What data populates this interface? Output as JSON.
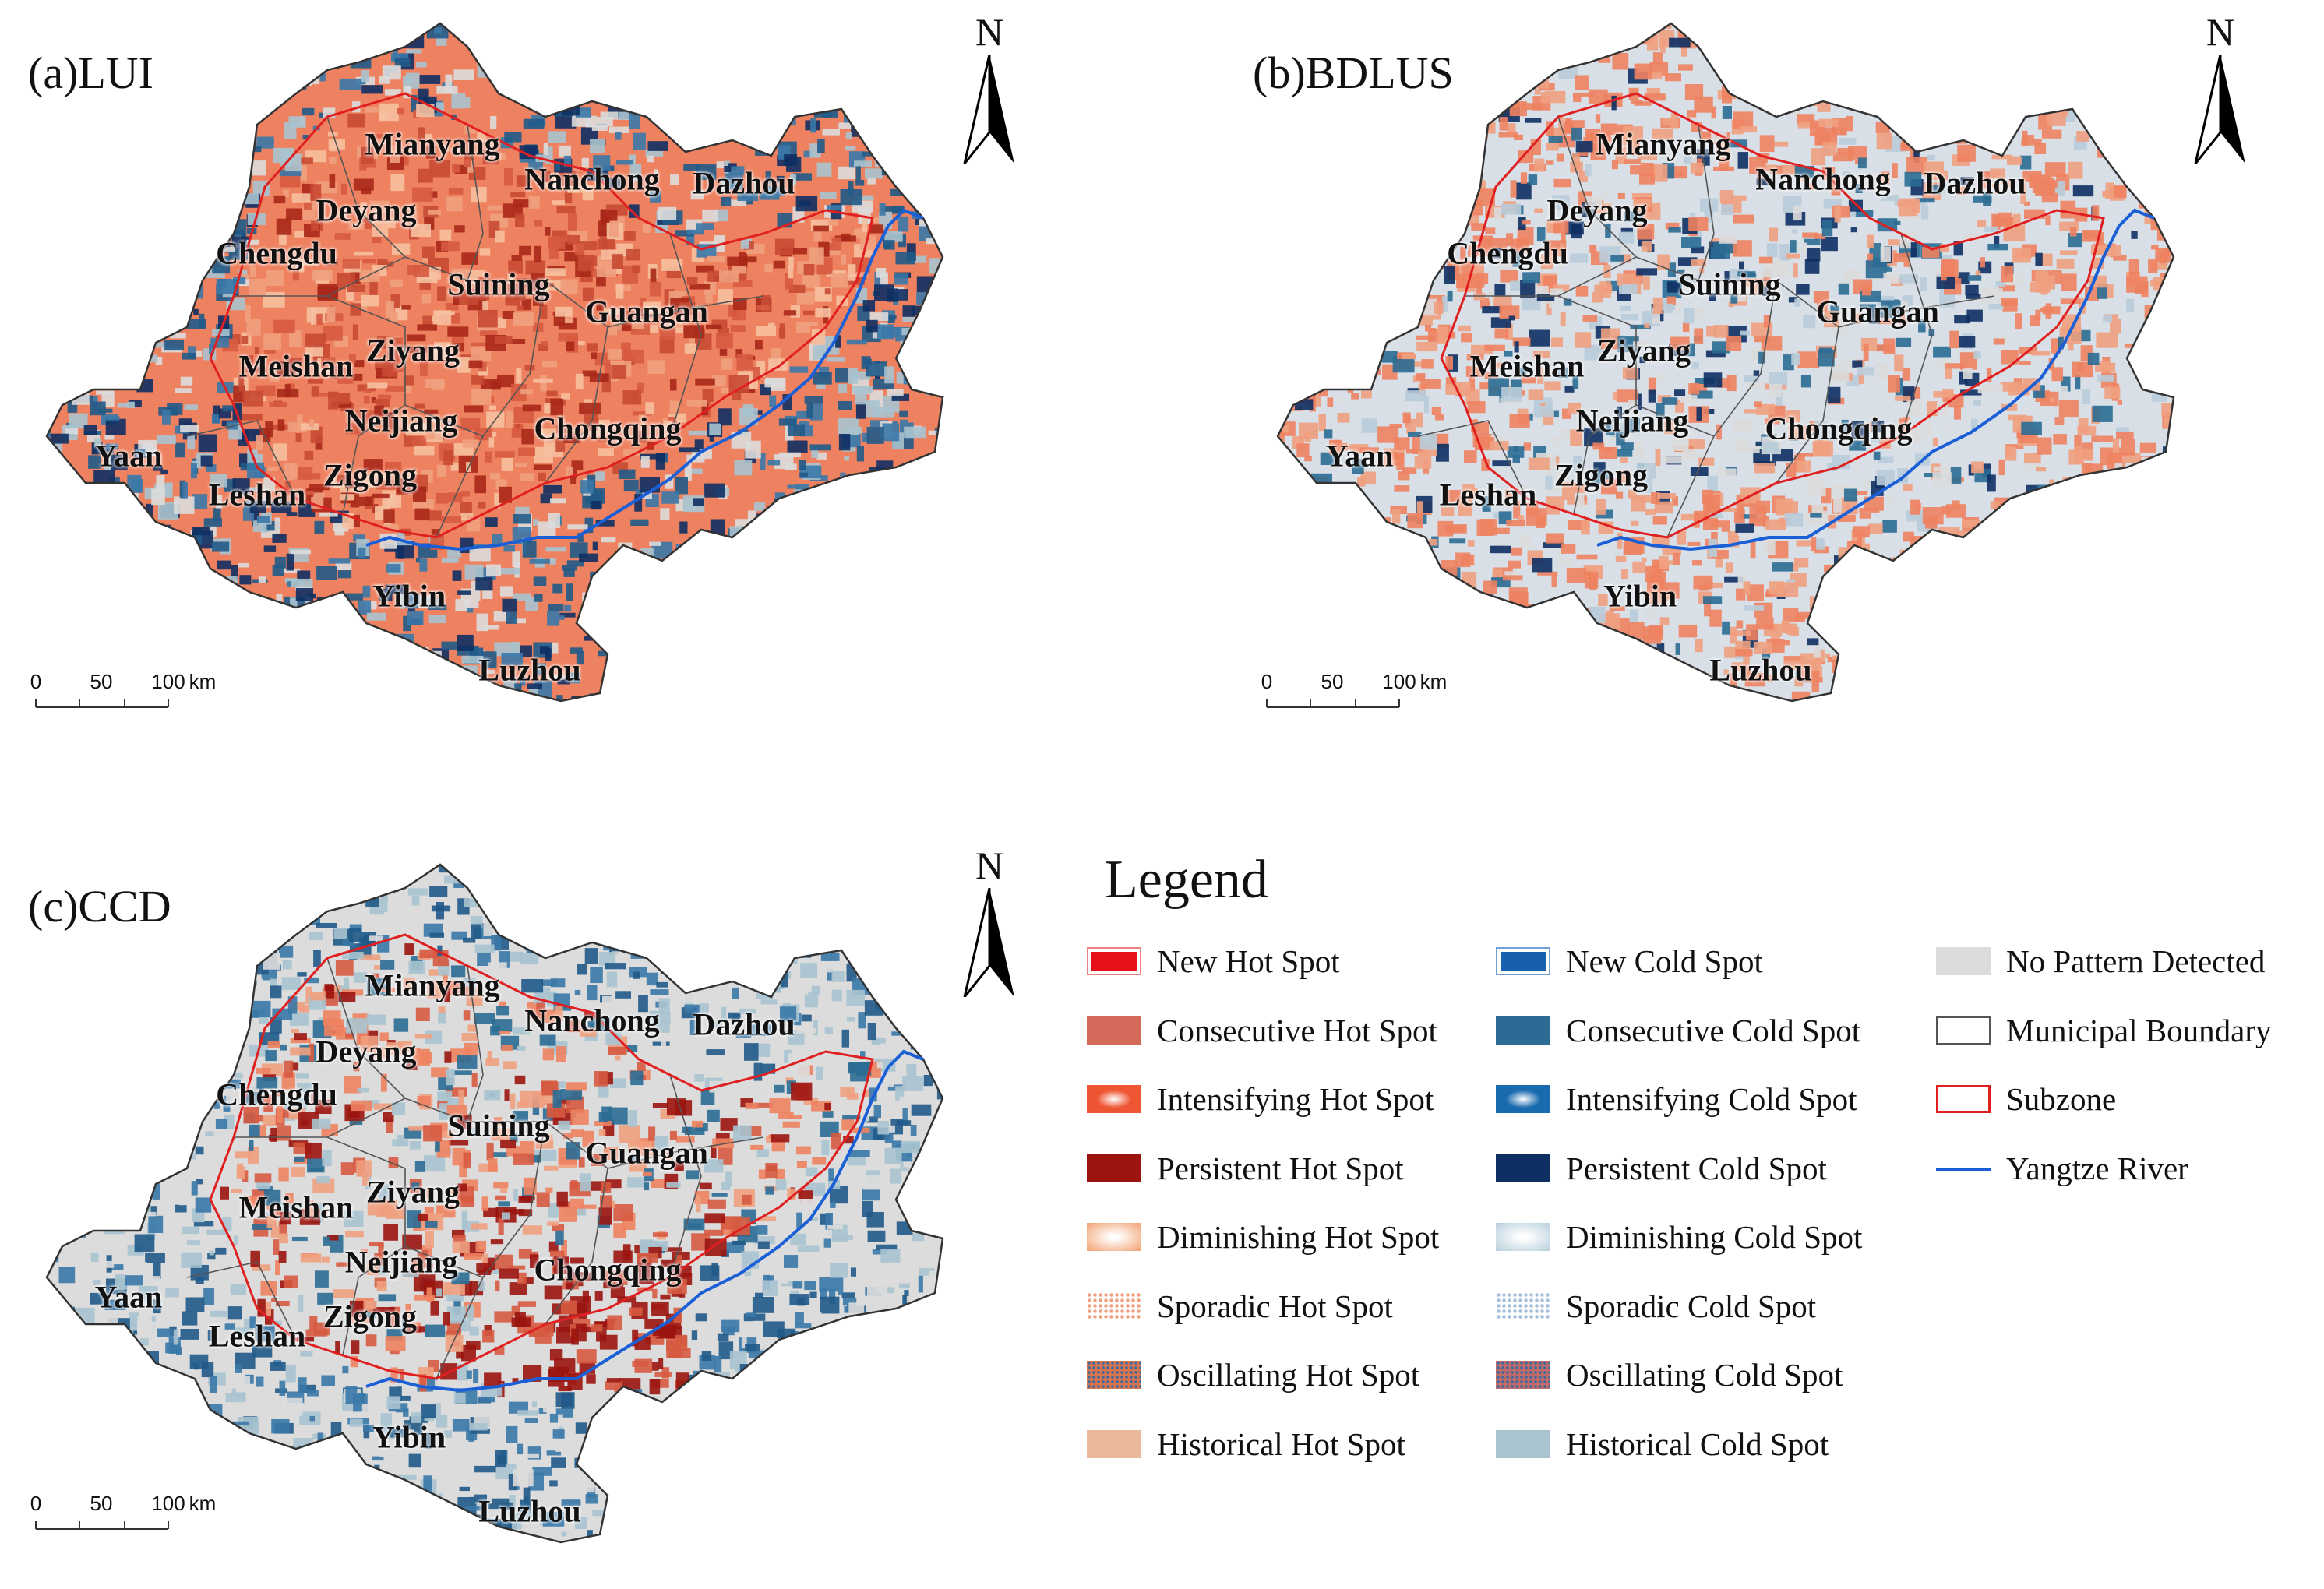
{
  "panels": [
    {
      "title": "(a)LUI",
      "scheme": "lui",
      "cities": [
        "Mianyang",
        "Nanchong",
        "Dazhou",
        "Deyang",
        "Chengdu",
        "Suining",
        "Guangan",
        "Ziyang",
        "Meishan",
        "Neijiang",
        "Chongqing",
        "Yaan",
        "Zigong",
        "Leshan",
        "Yibin",
        "Luzhou"
      ],
      "scale_labels": [
        "0",
        "50",
        "100",
        "km"
      ]
    },
    {
      "title": "(b)BDLUS",
      "scheme": "bdlus",
      "cities": [
        "Mianyang",
        "Nanchong",
        "Dazhou",
        "Deyang",
        "Chengdu",
        "Suining",
        "Guangan",
        "Ziyang",
        "Meishan",
        "Neijiang",
        "Chongqing",
        "Yaan",
        "Zigong",
        "Leshan",
        "Yibin",
        "Luzhou"
      ],
      "scale_labels": [
        "0",
        "50",
        "100",
        "km"
      ]
    },
    {
      "title": "(c)CCD",
      "scheme": "ccd",
      "cities": [
        "Mianyang",
        "Nanchong",
        "Dazhou",
        "Deyang",
        "Chengdu",
        "Suining",
        "Guangan",
        "Ziyang",
        "Meishan",
        "Neijiang",
        "Chongqing",
        "Yaan",
        "Zigong",
        "Leshan",
        "Yibin",
        "Luzhou"
      ],
      "scale_labels": [
        "0",
        "50",
        "100",
        "km"
      ]
    }
  ],
  "north_label": "N",
  "legend": {
    "title": "Legend",
    "items": [
      {
        "label": "New Hot Spot",
        "color": "#e8111b",
        "style": "boxed-solid"
      },
      {
        "label": "Consecutive Hot Spot",
        "color": "#d4695a",
        "style": "solid"
      },
      {
        "label": "Intensifying Hot Spot",
        "color": "#ee5533",
        "style": "radial"
      },
      {
        "label": "Persistent Hot Spot",
        "color": "#9b1410",
        "style": "solid"
      },
      {
        "label": "Diminishing Hot Spot",
        "color": "#f2a070",
        "style": "radial-light"
      },
      {
        "label": "Sporadic Hot Spot",
        "color": "#f0a080",
        "style": "dots"
      },
      {
        "label": "Oscillating Hot Spot",
        "color": "#d8744e",
        "style": "dots-dark"
      },
      {
        "label": "Historical Hot Spot",
        "color": "#ecb89a",
        "style": "solid"
      },
      {
        "label": "New Cold Spot",
        "color": "#1760b0",
        "style": "boxed-solid"
      },
      {
        "label": "Consecutive Cold Spot",
        "color": "#2b6b94",
        "style": "solid"
      },
      {
        "label": "Intensifying Cold Spot",
        "color": "#1a6aae",
        "style": "radial"
      },
      {
        "label": "Persistent Cold Spot",
        "color": "#0e2f63",
        "style": "solid"
      },
      {
        "label": "Diminishing Cold Spot",
        "color": "#b7cfdc",
        "style": "radial-light"
      },
      {
        "label": "Sporadic Cold Spot",
        "color": "#a7c0da",
        "style": "dots"
      },
      {
        "label": "Oscillating Cold Spot",
        "color": "#c06a6a",
        "style": "dots-dark"
      },
      {
        "label": "Historical Cold Spot",
        "color": "#a9c3cf",
        "style": "solid"
      },
      {
        "label": "No Pattern Detected",
        "color": "#dcdcdc",
        "style": "solid"
      },
      {
        "label": "Municipal Boundary",
        "color": "#555555",
        "style": "outline"
      },
      {
        "label": "Subzone",
        "color": "#e02020",
        "style": "outline-red"
      },
      {
        "label": "Yangtze River",
        "color": "#1a5fd6",
        "style": "line"
      }
    ]
  }
}
